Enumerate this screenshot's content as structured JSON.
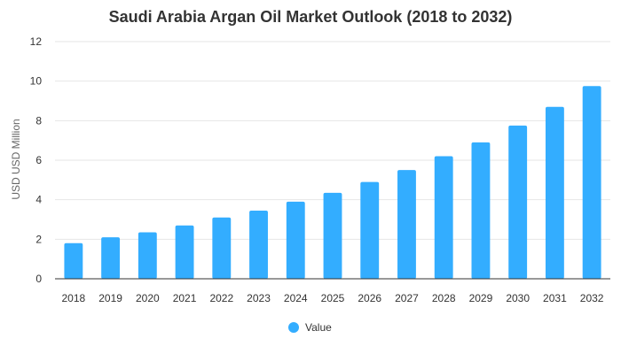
{
  "chart_data": {
    "type": "bar",
    "title": "Saudi Arabia Argan Oil Market Outlook (2018 to 2032)",
    "xlabel": "",
    "ylabel": "USD USD Million",
    "categories": [
      "2018",
      "2019",
      "2020",
      "2021",
      "2022",
      "2023",
      "2024",
      "2025",
      "2026",
      "2027",
      "2028",
      "2029",
      "2030",
      "2031",
      "2032"
    ],
    "series": [
      {
        "name": "Value",
        "values": [
          1.8,
          2.1,
          2.35,
          2.7,
          3.1,
          3.45,
          3.9,
          4.35,
          4.9,
          5.5,
          6.2,
          6.9,
          7.75,
          8.7,
          9.75
        ]
      }
    ],
    "ylim": [
      0,
      12
    ],
    "yticks": [
      0,
      2,
      4,
      6,
      8,
      10,
      12
    ],
    "grid": true,
    "legend_position": "bottom-center",
    "colors": {
      "bar": "#33adff",
      "grid": "#e6e6e6",
      "axis": "#333333"
    }
  }
}
